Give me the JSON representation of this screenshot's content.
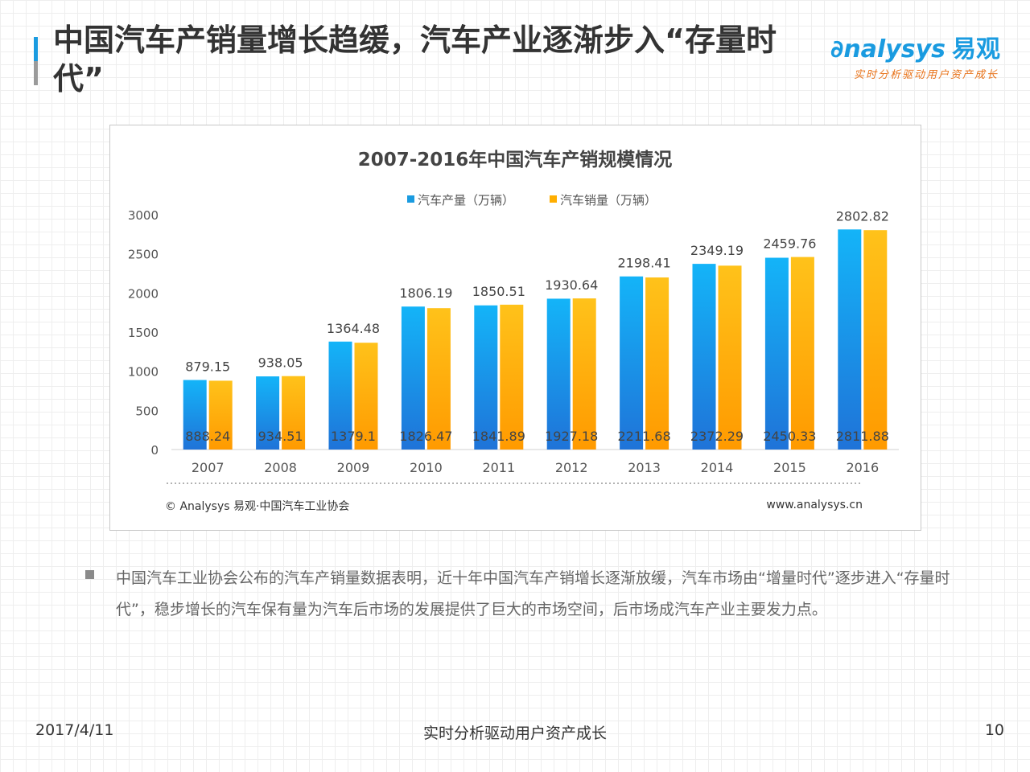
{
  "slide": {
    "title": "中国汽车产销量增长趋缓，汽车产业逐渐步入“存量时代”",
    "logo": {
      "brand": "nalysys",
      "brand_cn": "易观",
      "slogan": "实时分析驱动用户资产成长"
    },
    "paragraph": "中国汽车工业协会公布的汽车产销量数据表明，近十年中国汽车产销增长逐渐放缓，汽车市场由“增量时代”逐步进入“存量时代”，稳步增长的汽车保有量为汽车后市场的发展提供了巨大的市场空间，后市场成汽车产业主要发力点。",
    "footer": {
      "date": "2017/4/11",
      "slogan": "实时分析驱动用户资产成长",
      "page": "10"
    }
  },
  "chart_data": {
    "type": "bar",
    "title": "2007-2016年中国汽车产销规模情况",
    "categories": [
      "2007",
      "2008",
      "2009",
      "2010",
      "2011",
      "2012",
      "2013",
      "2014",
      "2015",
      "2016"
    ],
    "series": [
      {
        "name": "汽车产量（万辆）",
        "values": [
          888.24,
          934.51,
          1379.1,
          1826.47,
          1841.89,
          1927.18,
          2211.68,
          2372.29,
          2450.33,
          2811.88
        ],
        "color": "#1a9be0"
      },
      {
        "name": "汽车销量（万辆）",
        "values": [
          879.15,
          938.05,
          1364.48,
          1806.19,
          1850.51,
          1930.64,
          2198.41,
          2349.19,
          2459.76,
          2802.82
        ],
        "color": "#ffae00"
      }
    ],
    "ylim": [
      0,
      3000
    ],
    "yticks": [
      0,
      500,
      1000,
      1500,
      2000,
      2500,
      3000
    ],
    "grid": false,
    "legend": "top-center",
    "source": "© Analysys 易观·中国汽车工业协会",
    "website": "www.analysys.cn"
  }
}
